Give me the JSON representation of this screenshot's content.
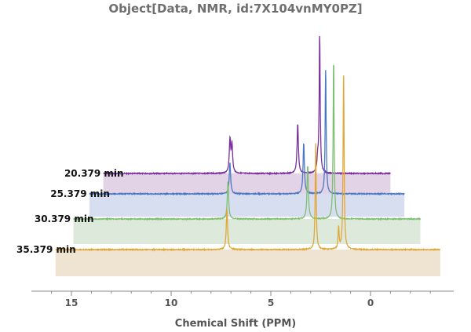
{
  "chart_data": {
    "type": "line",
    "title": "Object[Data, NMR, id:7X104vnMY0PZ]",
    "xlabel": "Chemical Shift  (PPM)",
    "x_reversed": true,
    "xlim": [
      -3.5,
      16.5
    ],
    "x_ticks": [
      15,
      10,
      5,
      0
    ],
    "x_tick_labels": [
      "15",
      "10",
      "5",
      "0"
    ],
    "grid": false,
    "series": [
      {
        "name": "20.379 min",
        "color": "#7b2f9e",
        "fill": "#e3d3e6",
        "x_range": [
          13.4,
          -1.0
        ],
        "peaks": [
          {
            "ppm": 7.05,
            "height": 42,
            "width": 0.04
          },
          {
            "ppm": 6.95,
            "height": 36,
            "width": 0.04
          },
          {
            "ppm": 3.65,
            "height": 63,
            "width": 0.04
          },
          {
            "ppm": 2.65,
            "height": 18,
            "width": 0.04
          },
          {
            "ppm": 2.55,
            "height": 175,
            "width": 0.03
          }
        ]
      },
      {
        "name": "25.379 min",
        "color": "#4a78c4",
        "fill": "#d7deef",
        "x_range": [
          14.1,
          -1.7
        ],
        "peaks": [
          {
            "ppm": 7.05,
            "height": 40,
            "width": 0.04
          },
          {
            "ppm": 3.35,
            "height": 65,
            "width": 0.04
          },
          {
            "ppm": 2.25,
            "height": 160,
            "width": 0.03
          }
        ]
      },
      {
        "name": "30.379 min",
        "color": "#7fbf74",
        "fill": "#dde9da",
        "x_range": [
          14.9,
          -2.5
        ],
        "peaks": [
          {
            "ppm": 7.15,
            "height": 48,
            "width": 0.04
          },
          {
            "ppm": 3.15,
            "height": 68,
            "width": 0.04
          },
          {
            "ppm": 1.85,
            "height": 205,
            "width": 0.03
          }
        ]
      },
      {
        "name": "35.379 min",
        "color": "#e0a83a",
        "fill": "#efe3d1",
        "x_range": [
          15.8,
          -3.5
        ],
        "peaks": [
          {
            "ppm": 7.2,
            "height": 52,
            "width": 0.04
          },
          {
            "ppm": 2.75,
            "height": 135,
            "width": 0.03
          },
          {
            "ppm": 1.6,
            "height": 28,
            "width": 0.03
          },
          {
            "ppm": 1.35,
            "height": 228,
            "width": 0.03
          }
        ]
      }
    ]
  }
}
